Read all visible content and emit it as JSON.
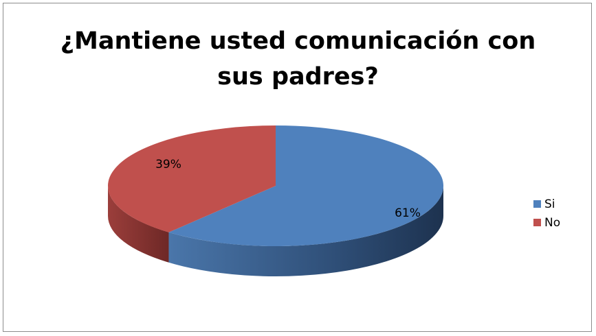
{
  "chart_data": {
    "type": "pie",
    "title_lines": [
      "¿Mantiene usted comunicación con",
      "sus padres?"
    ],
    "slices": [
      {
        "name": "Si",
        "value": 61,
        "label": "61%",
        "color": "#4f81bd",
        "side_color": "#2c4a70"
      },
      {
        "name": "No",
        "value": 39,
        "label": "39%",
        "color": "#c0504d",
        "side_color": "#7d2f2d"
      }
    ],
    "style": "3d",
    "legend_position": "right"
  }
}
